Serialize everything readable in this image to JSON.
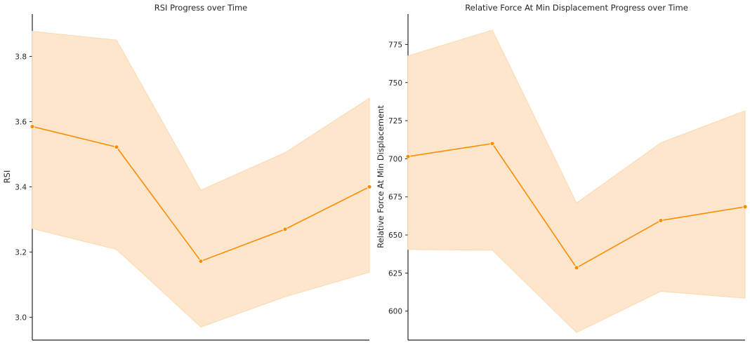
{
  "chart_data": [
    {
      "type": "line",
      "title": "RSI Progress over Time",
      "xlabel": "",
      "ylabel": "RSI",
      "ylim": [
        2.93,
        3.93
      ],
      "x": [
        1,
        2,
        3,
        4,
        5
      ],
      "xlim": [
        1,
        5
      ],
      "yticks": [
        3.0,
        3.2,
        3.4,
        3.6,
        3.8
      ],
      "ytick_labels": [
        "3.0",
        "3.2",
        "3.4",
        "3.6",
        "3.8"
      ],
      "series": [
        {
          "values": [
            3.585,
            3.522,
            3.172,
            3.27,
            3.4
          ],
          "ci_lower": [
            3.272,
            3.208,
            2.97,
            3.063,
            3.138
          ],
          "ci_upper": [
            3.877,
            3.85,
            3.39,
            3.505,
            3.672
          ],
          "color": "#ff8c00"
        }
      ],
      "grid": false
    },
    {
      "type": "line",
      "title": "Relative Force At Min Displacement Progress over Time",
      "xlabel": "",
      "ylabel": "Relative Force At Min Displacement",
      "ylim": [
        581,
        795
      ],
      "x": [
        1,
        2,
        3,
        4,
        5
      ],
      "xlim": [
        1,
        5
      ],
      "yticks": [
        600,
        625,
        650,
        675,
        700,
        725,
        750,
        775
      ],
      "ytick_labels": [
        "600",
        "625",
        "650",
        "675",
        "700",
        "725",
        "750",
        "775"
      ],
      "series": [
        {
          "values": [
            701.5,
            710.0,
            628.5,
            659.5,
            668.5
          ],
          "ci_lower": [
            640.5,
            640.0,
            586.0,
            613.0,
            608.5
          ],
          "ci_upper": [
            767.5,
            784.5,
            671.0,
            710.5,
            731.5
          ],
          "color": "#ff8c00"
        }
      ],
      "grid": false
    }
  ],
  "colors": {
    "line": "#ff8c00",
    "band": "#fde6cb",
    "spine": "#262626"
  }
}
